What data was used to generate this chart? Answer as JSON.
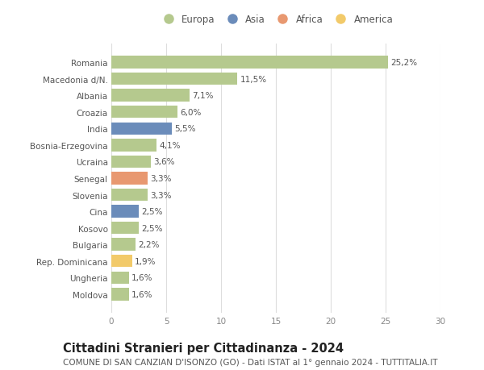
{
  "countries": [
    "Romania",
    "Macedonia d/N.",
    "Albania",
    "Croazia",
    "India",
    "Bosnia-Erzegovina",
    "Ucraina",
    "Senegal",
    "Slovenia",
    "Cina",
    "Kosovo",
    "Bulgaria",
    "Rep. Dominicana",
    "Ungheria",
    "Moldova"
  ],
  "values": [
    25.2,
    11.5,
    7.1,
    6.0,
    5.5,
    4.1,
    3.6,
    3.3,
    3.3,
    2.5,
    2.5,
    2.2,
    1.9,
    1.6,
    1.6
  ],
  "labels": [
    "25,2%",
    "11,5%",
    "7,1%",
    "6,0%",
    "5,5%",
    "4,1%",
    "3,6%",
    "3,3%",
    "3,3%",
    "2,5%",
    "2,5%",
    "2,2%",
    "1,9%",
    "1,6%",
    "1,6%"
  ],
  "continents": [
    "Europa",
    "Europa",
    "Europa",
    "Europa",
    "Asia",
    "Europa",
    "Europa",
    "Africa",
    "Europa",
    "Asia",
    "Europa",
    "Europa",
    "America",
    "Europa",
    "Europa"
  ],
  "continent_colors": {
    "Europa": "#b5c98e",
    "Asia": "#6b8cba",
    "Africa": "#e89870",
    "America": "#f2ca6a"
  },
  "legend_order": [
    "Europa",
    "Asia",
    "Africa",
    "America"
  ],
  "title": "Cittadini Stranieri per Cittadinanza - 2024",
  "subtitle": "COMUNE DI SAN CANZIAN D'ISONZO (GO) - Dati ISTAT al 1° gennaio 2024 - TUTTITALIA.IT",
  "xlim": [
    0,
    30
  ],
  "xticks": [
    0,
    5,
    10,
    15,
    20,
    25,
    30
  ],
  "background_color": "#ffffff",
  "grid_color": "#dddddd",
  "bar_height": 0.75,
  "label_fontsize": 7.5,
  "title_fontsize": 10.5,
  "subtitle_fontsize": 7.5,
  "tick_fontsize": 7.5,
  "legend_fontsize": 8.5
}
